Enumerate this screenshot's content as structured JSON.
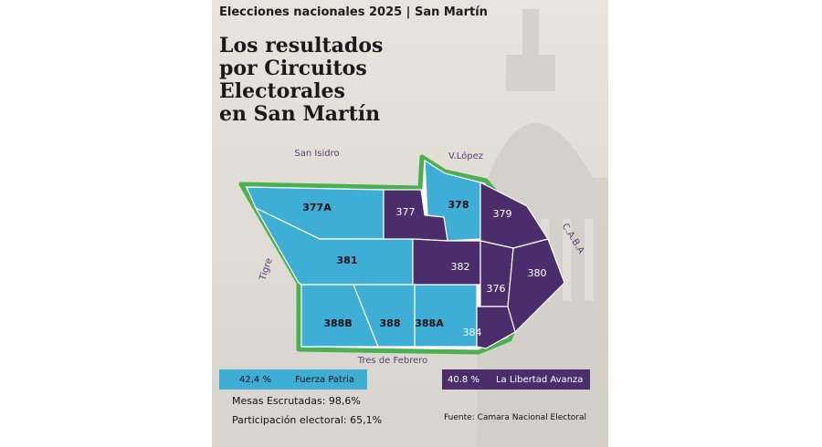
{
  "header": {
    "kicker": "Elecciones nacionales 2025 | San Martín",
    "title_lines": [
      "Los resultados",
      "por Circuitos",
      "Electorales",
      "en San Martín"
    ]
  },
  "map": {
    "neighbors": {
      "north_west": "San Isidro",
      "north_east": "V.López",
      "east": "C.A.B.A",
      "west": "Tigre",
      "south": "Tres de Febrero"
    },
    "circuits": [
      {
        "id": "377A",
        "winner": "Fuerza Patria"
      },
      {
        "id": "377",
        "winner": "La Libertad Avanza"
      },
      {
        "id": "378",
        "winner": "Fuerza Patria"
      },
      {
        "id": "379",
        "winner": "La Libertad Avanza"
      },
      {
        "id": "381",
        "winner": "Fuerza Patria"
      },
      {
        "id": "382",
        "winner": "La Libertad Avanza"
      },
      {
        "id": "380",
        "winner": "La Libertad Avanza"
      },
      {
        "id": "376",
        "winner": "La Libertad Avanza"
      },
      {
        "id": "388B",
        "winner": "Fuerza Patria"
      },
      {
        "id": "388",
        "winner": "Fuerza Patria"
      },
      {
        "id": "388A",
        "winner": "Fuerza Patria"
      },
      {
        "id": "384",
        "winner": "La Libertad Avanza"
      }
    ],
    "colors": {
      "fuerza_patria": "#3faed6",
      "la_libertad_avanza": "#4c2d6b",
      "border": "#4caf50"
    }
  },
  "legend": [
    {
      "pct": "42,4 %",
      "party": "Fuerza Patria"
    },
    {
      "pct": "40.8 %",
      "party": "La Libertad Avanza"
    }
  ],
  "stats": {
    "mesas": "Mesas Escrutadas: 98,6%",
    "participacion": "Participación electoral: 65,1%"
  },
  "source": "Fuente: Camara Nacional Electoral"
}
